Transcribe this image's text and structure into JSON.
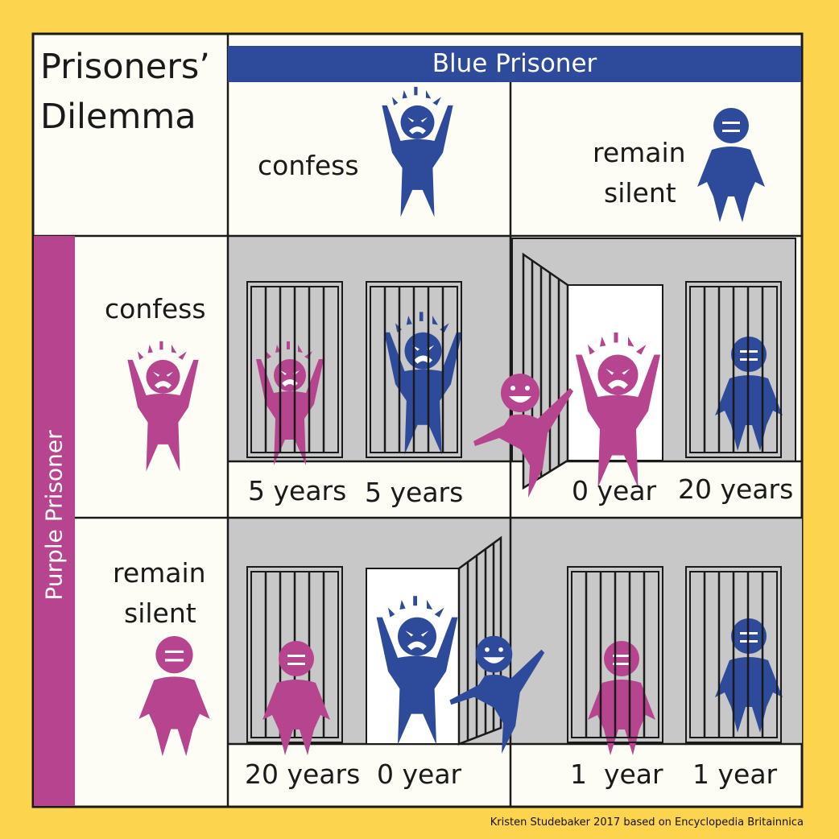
{
  "title_line1": "Prisoners’",
  "title_line2": "Dilemma",
  "blue_header": "Blue Prisoner",
  "purple_header": "Purple Prisoner",
  "columns": {
    "confess": "confess",
    "silent_line1": "remain",
    "silent_line2": "silent"
  },
  "rows": {
    "confess": "confess",
    "silent_line1": "remain",
    "silent_line2": "silent"
  },
  "outcomes": {
    "confess_confess": {
      "purple": "5 years",
      "blue": "5 years"
    },
    "purple_confess_blue_silent": {
      "purple": "0 year",
      "blue": "20 years"
    },
    "purple_silent_blue_confess": {
      "purple": "20 years",
      "blue": "0 year"
    },
    "silent_silent": {
      "purple": "1  year",
      "blue": "1 year"
    }
  },
  "credit": "Kristen Studebaker 2017 based on Encyclopedia Britainnica",
  "colors": {
    "background": "#fdd44e",
    "blue": "#2e4a9a",
    "purple": "#b6448f",
    "cell": "#fefdf5",
    "cell_gray": "#c8c8c8"
  }
}
